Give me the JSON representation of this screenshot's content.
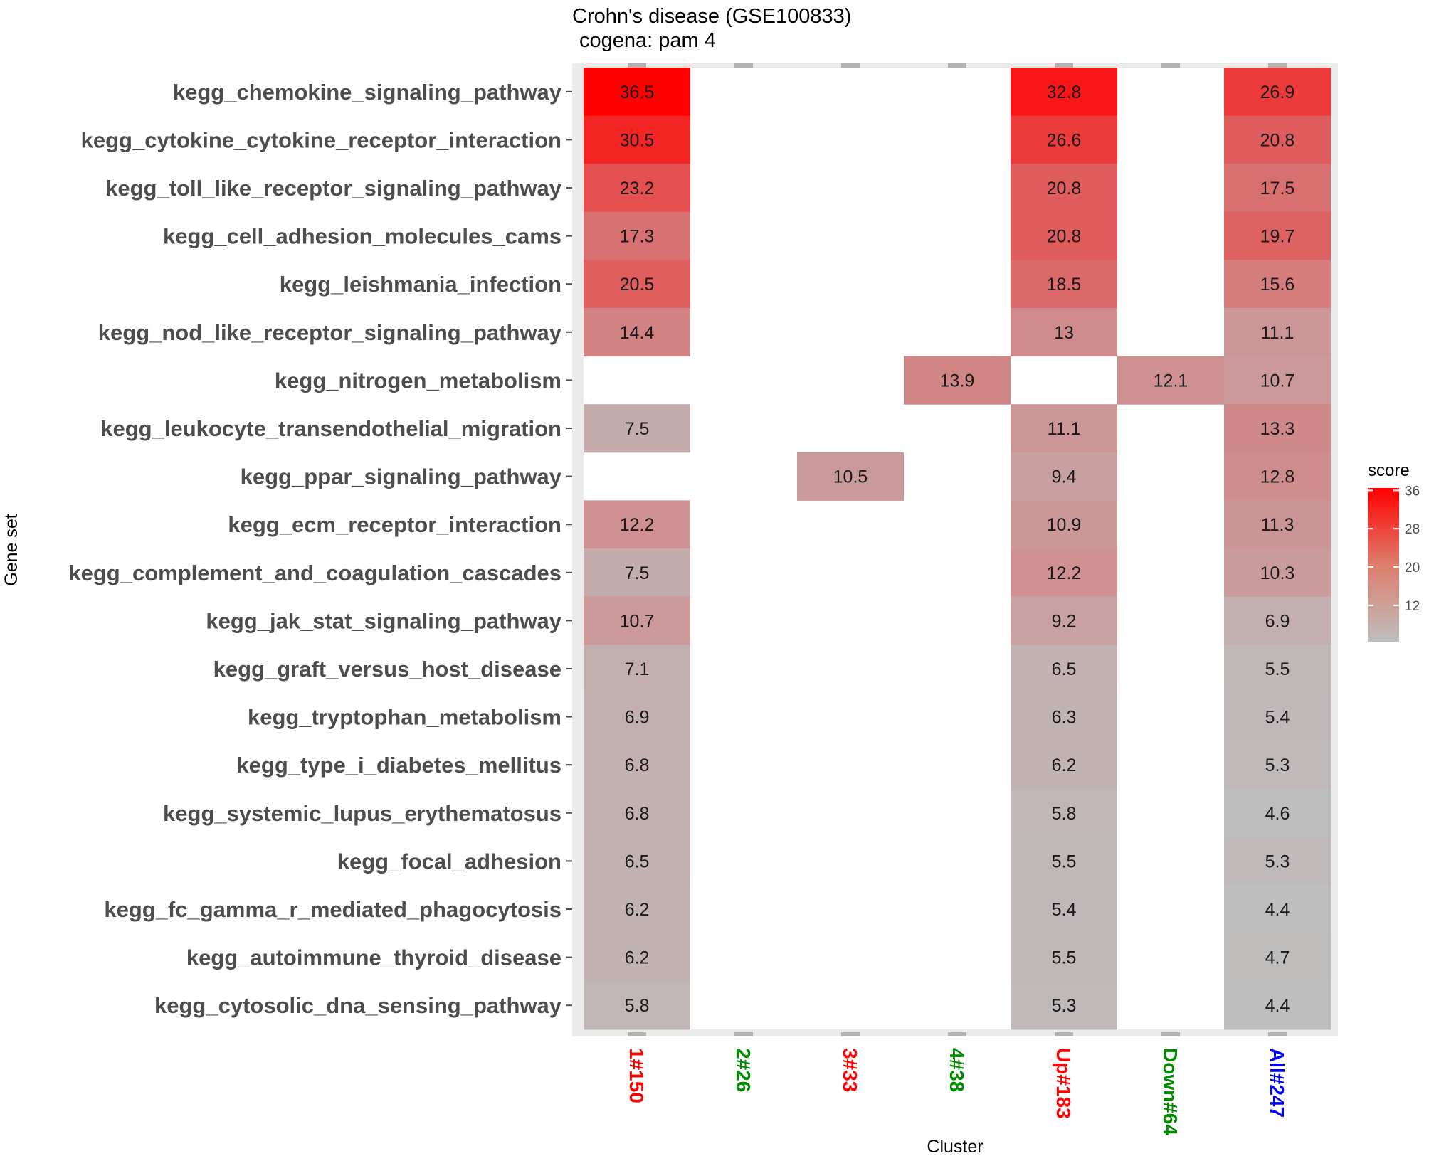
{
  "chart_data": {
    "type": "heatmap",
    "title": "Crohn's disease (GSE100833)",
    "subtitle": "cogena: pam 4",
    "xlabel": "Cluster",
    "ylabel": "Gene set",
    "columns": [
      {
        "label": "1#150",
        "color": "#ff0000"
      },
      {
        "label": "2#26",
        "color": "#008b00"
      },
      {
        "label": "3#33",
        "color": "#ff0000"
      },
      {
        "label": "4#38",
        "color": "#008b00"
      },
      {
        "label": "Up#183",
        "color": "#ff0000"
      },
      {
        "label": "Down#64",
        "color": "#008b00"
      },
      {
        "label": "All#247",
        "color": "#0000ff"
      }
    ],
    "rows": [
      "kegg_chemokine_signaling_pathway",
      "kegg_cytokine_cytokine_receptor_interaction",
      "kegg_toll_like_receptor_signaling_pathway",
      "kegg_cell_adhesion_molecules_cams",
      "kegg_leishmania_infection",
      "kegg_nod_like_receptor_signaling_pathway",
      "kegg_nitrogen_metabolism",
      "kegg_leukocyte_transendothelial_migration",
      "kegg_ppar_signaling_pathway",
      "kegg_ecm_receptor_interaction",
      "kegg_complement_and_coagulation_cascades",
      "kegg_jak_stat_signaling_pathway",
      "kegg_graft_versus_host_disease",
      "kegg_tryptophan_metabolism",
      "kegg_type_i_diabetes_mellitus",
      "kegg_systemic_lupus_erythematosus",
      "kegg_focal_adhesion",
      "kegg_fc_gamma_r_mediated_phagocytosis",
      "kegg_autoimmune_thyroid_disease",
      "kegg_cytosolic_dna_sensing_pathway"
    ],
    "values": [
      [
        36.5,
        null,
        null,
        null,
        32.8,
        null,
        26.9
      ],
      [
        30.5,
        null,
        null,
        null,
        26.6,
        null,
        20.8
      ],
      [
        23.2,
        null,
        null,
        null,
        20.8,
        null,
        17.5
      ],
      [
        17.3,
        null,
        null,
        null,
        20.8,
        null,
        19.7
      ],
      [
        20.5,
        null,
        null,
        null,
        18.5,
        null,
        15.6
      ],
      [
        14.4,
        null,
        null,
        null,
        13,
        null,
        11.1
      ],
      [
        null,
        null,
        null,
        13.9,
        null,
        12.1,
        10.7
      ],
      [
        7.5,
        null,
        null,
        null,
        11.1,
        null,
        13.3
      ],
      [
        null,
        null,
        10.5,
        null,
        9.4,
        null,
        12.8
      ],
      [
        12.2,
        null,
        null,
        null,
        10.9,
        null,
        11.3
      ],
      [
        7.5,
        null,
        null,
        null,
        12.2,
        null,
        10.3
      ],
      [
        10.7,
        null,
        null,
        null,
        9.2,
        null,
        6.9
      ],
      [
        7.1,
        null,
        null,
        null,
        6.5,
        null,
        5.5
      ],
      [
        6.9,
        null,
        null,
        null,
        6.3,
        null,
        5.4
      ],
      [
        6.8,
        null,
        null,
        null,
        6.2,
        null,
        5.3
      ],
      [
        6.8,
        null,
        null,
        null,
        5.8,
        null,
        4.6
      ],
      [
        6.5,
        null,
        null,
        null,
        5.5,
        null,
        5.3
      ],
      [
        6.2,
        null,
        null,
        null,
        5.4,
        null,
        4.4
      ],
      [
        6.2,
        null,
        null,
        null,
        5.5,
        null,
        4.7
      ],
      [
        5.8,
        null,
        null,
        null,
        5.3,
        null,
        4.4
      ]
    ],
    "legend": {
      "title": "score",
      "ticks": [
        12,
        20,
        28,
        36
      ],
      "range": [
        4.4,
        36.5
      ],
      "low_color": "#bebebe",
      "high_color": "#ff0000",
      "position": "right"
    },
    "panel_background": "#ebebeb"
  }
}
